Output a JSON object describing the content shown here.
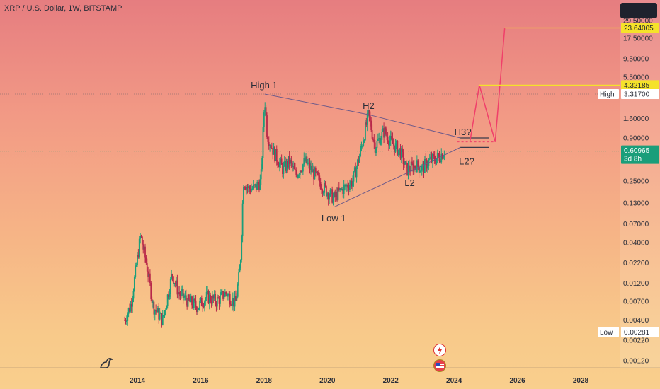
{
  "header": {
    "title": "XRP / U.S. Dollar, 1W, BITSTAMP"
  },
  "chart_data": {
    "type": "candlestick",
    "symbol": "XRP / U.S. Dollar",
    "interval": "1W",
    "exchange": "BITSTAMP",
    "yscale": "log",
    "x_ticks": [
      "2014",
      "2016",
      "2018",
      "2020",
      "2022",
      "2024",
      "2026",
      "2028"
    ],
    "y_ticks": [
      "29.50000",
      "17.50000",
      "9.50000",
      "5.50000",
      "1.60000",
      "0.90000",
      "0.25000",
      "0.13000",
      "0.07000",
      "0.04000",
      "0.02200",
      "0.01200",
      "0.00700",
      "0.00400",
      "0.00220",
      "0.00120"
    ],
    "price_path": [
      [
        2013.6,
        0.004
      ],
      [
        2013.8,
        0.0065
      ],
      [
        2014.0,
        0.025
      ],
      [
        2014.1,
        0.05
      ],
      [
        2014.3,
        0.02
      ],
      [
        2014.5,
        0.006
      ],
      [
        2014.8,
        0.004
      ],
      [
        2015.1,
        0.016
      ],
      [
        2015.3,
        0.009
      ],
      [
        2015.6,
        0.007
      ],
      [
        2015.9,
        0.006
      ],
      [
        2016.2,
        0.008
      ],
      [
        2016.5,
        0.007
      ],
      [
        2016.8,
        0.009
      ],
      [
        2017.1,
        0.0065
      ],
      [
        2017.25,
        0.02
      ],
      [
        2017.35,
        0.25
      ],
      [
        2017.5,
        0.2
      ],
      [
        2017.7,
        0.2
      ],
      [
        2017.9,
        0.25
      ],
      [
        2018.02,
        3.0
      ],
      [
        2018.1,
        1.0
      ],
      [
        2018.3,
        0.6
      ],
      [
        2018.6,
        0.35
      ],
      [
        2018.8,
        0.45
      ],
      [
        2019.0,
        0.3
      ],
      [
        2019.3,
        0.45
      ],
      [
        2019.6,
        0.3
      ],
      [
        2019.9,
        0.2
      ],
      [
        2020.2,
        0.15
      ],
      [
        2020.5,
        0.2
      ],
      [
        2020.8,
        0.25
      ],
      [
        2021.0,
        0.5
      ],
      [
        2021.3,
        1.8
      ],
      [
        2021.5,
        0.7
      ],
      [
        2021.8,
        1.1
      ],
      [
        2022.0,
        0.8
      ],
      [
        2022.3,
        0.6
      ],
      [
        2022.5,
        0.35
      ],
      [
        2022.8,
        0.4
      ],
      [
        2023.0,
        0.36
      ],
      [
        2023.2,
        0.45
      ],
      [
        2023.5,
        0.5
      ],
      [
        2023.7,
        0.61
      ]
    ],
    "trendlines": {
      "upper": [
        [
          2018.02,
          3.317
        ],
        [
          2021.3,
          1.8
        ],
        [
          2024.2,
          0.9
        ]
      ],
      "lower": [
        [
          2020.2,
          0.115
        ],
        [
          2022.6,
          0.33
        ],
        [
          2024.2,
          0.68
        ]
      ]
    },
    "annotations": [
      {
        "text": "High 1",
        "x": 2018.0,
        "y": 3.317
      },
      {
        "text": "H2",
        "x": 2021.3,
        "y": 1.8
      },
      {
        "text": "H3?",
        "x": 2024.1,
        "y": 0.9
      },
      {
        "text": "L2?",
        "x": 2024.4,
        "y": 0.6
      },
      {
        "text": "L2",
        "x": 2022.6,
        "y": 0.33
      },
      {
        "text": "Low 1",
        "x": 2020.2,
        "y": 0.115
      }
    ],
    "projection": [
      [
        2024.5,
        0.8
      ],
      [
        2024.8,
        4.32185
      ],
      [
        2025.3,
        0.8
      ],
      [
        2025.6,
        23.64005
      ]
    ],
    "price_labels": [
      {
        "label": "",
        "value": "23.64005",
        "y": 23.64005,
        "style": "target"
      },
      {
        "label": "",
        "value": "4.32185",
        "y": 4.32185,
        "style": "target"
      },
      {
        "label": "High",
        "value": "3.31700",
        "y": 3.317,
        "style": "high"
      },
      {
        "label": "",
        "value": "0.60965",
        "y": 0.60965,
        "style": "current",
        "sub": "3d 8h"
      },
      {
        "label": "Low",
        "value": "0.00281",
        "y": 0.00281,
        "style": "low"
      }
    ],
    "colors": {
      "up": "#1a9e7a",
      "down": "#b8284a",
      "projection": "#f03f6a",
      "target_line": "#f5e22a",
      "current": "#1a9e7a",
      "trendline": "#3a3a4a"
    }
  }
}
